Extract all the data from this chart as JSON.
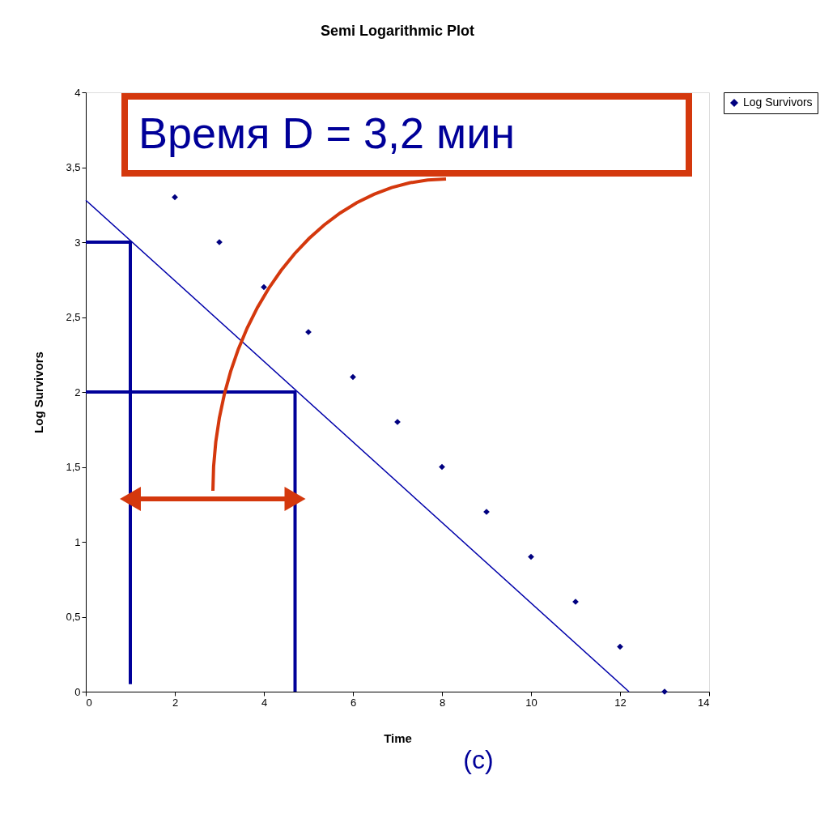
{
  "chart_data": {
    "type": "scatter",
    "title": "Semi Logarithmic Plot",
    "xlabel": "Time",
    "ylabel": "Log Survivors",
    "xlim": [
      0,
      14
    ],
    "xticks": [
      0,
      2,
      4,
      6,
      8,
      10,
      12,
      14
    ],
    "ylim": [
      0,
      4
    ],
    "yticks": [
      0,
      {
        "value": 0.5,
        "label": "0,5"
      },
      1,
      {
        "value": 1.5,
        "label": "1,5"
      },
      2,
      {
        "value": 2.5,
        "label": "2,5"
      },
      3,
      {
        "value": 3.5,
        "label": "3,5"
      },
      4
    ],
    "grid": false,
    "legend": "right",
    "marker": "diamond",
    "series": [
      {
        "name": "Log Survivors",
        "color": "#000080",
        "x": [
          2,
          3,
          4,
          5,
          6,
          7,
          8,
          9,
          10,
          11,
          12,
          13
        ],
        "values": [
          3.3,
          3.0,
          2.7,
          2.4,
          2.1,
          1.8,
          1.5,
          1.2,
          0.9,
          0.6,
          0.3,
          0
        ]
      },
      {
        "type": "line",
        "marker": "none",
        "color": "#0000aa",
        "x": [
          0,
          12.2
        ],
        "values": [
          3.28,
          0
        ]
      },
      {
        "type": "line",
        "marker": "none",
        "color": "#000099",
        "x": [
          0,
          1,
          1
        ],
        "values": [
          3,
          3,
          0.05
        ]
      },
      {
        "type": "line",
        "marker": "none",
        "color": "#000099",
        "x": [
          0,
          4.7,
          4.7
        ],
        "values": [
          2,
          2,
          0
        ]
      }
    ],
    "annotations": [
      "Время D = 3,2 мин",
      "(c)"
    ]
  }
}
